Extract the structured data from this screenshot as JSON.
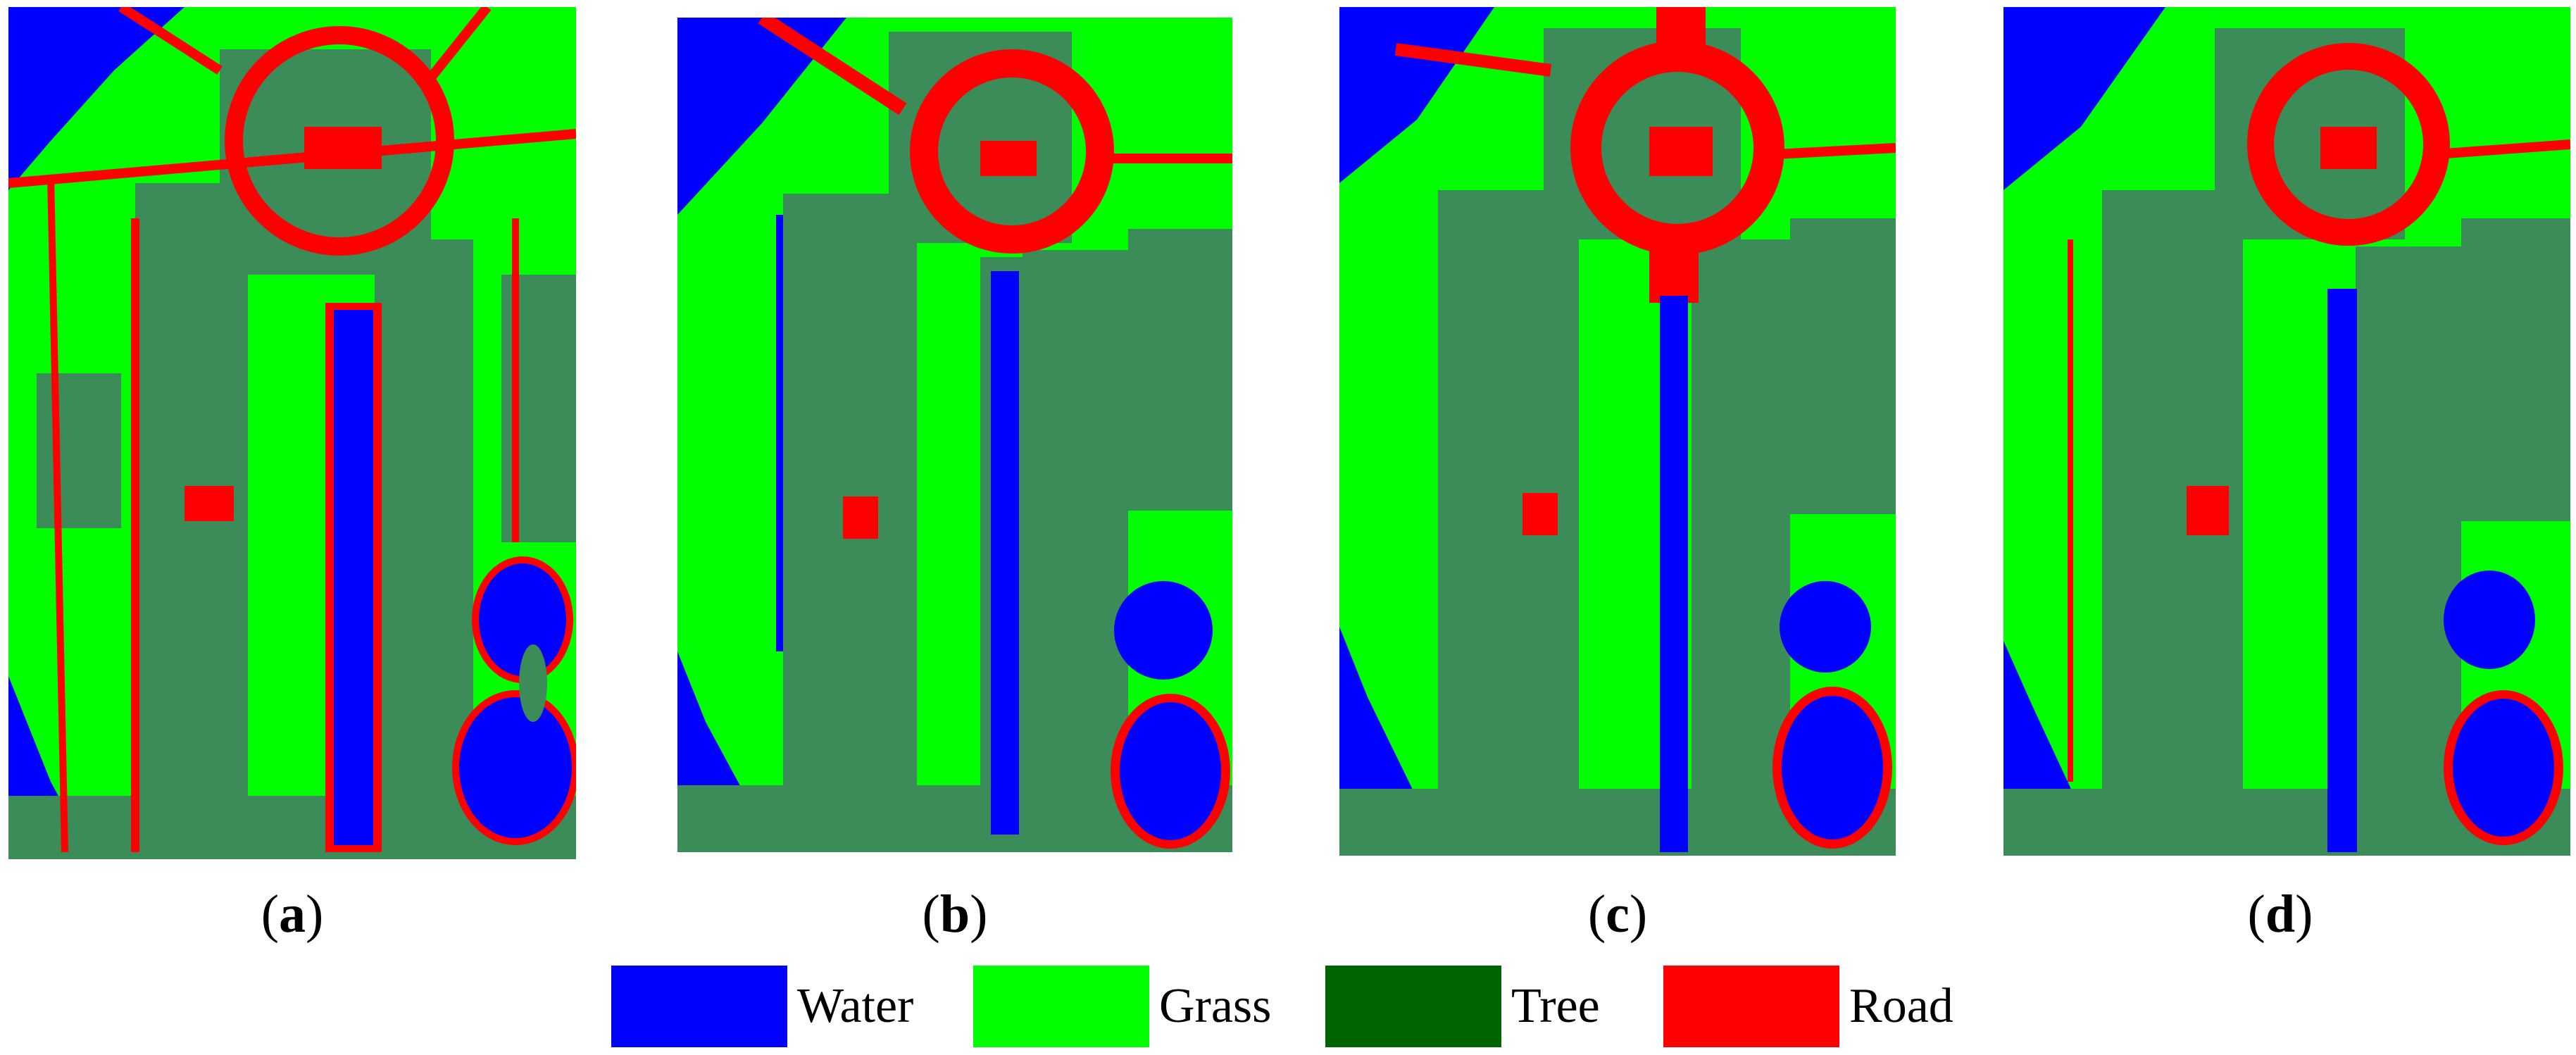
{
  "colors": {
    "water": "#0000FF",
    "grass": "#00FF00",
    "tree": "#006400",
    "tree_map": "#3C8C5A",
    "road": "#FF0000"
  },
  "panels": [
    {
      "label": "a"
    },
    {
      "label": "b"
    },
    {
      "label": "c"
    },
    {
      "label": "d"
    }
  ],
  "legend": [
    {
      "label": "Water",
      "color": "#0000FF"
    },
    {
      "label": "Grass",
      "color": "#00FF00"
    },
    {
      "label": "Tree",
      "color": "#006400"
    },
    {
      "label": "Road",
      "color": "#FF0000"
    }
  ]
}
